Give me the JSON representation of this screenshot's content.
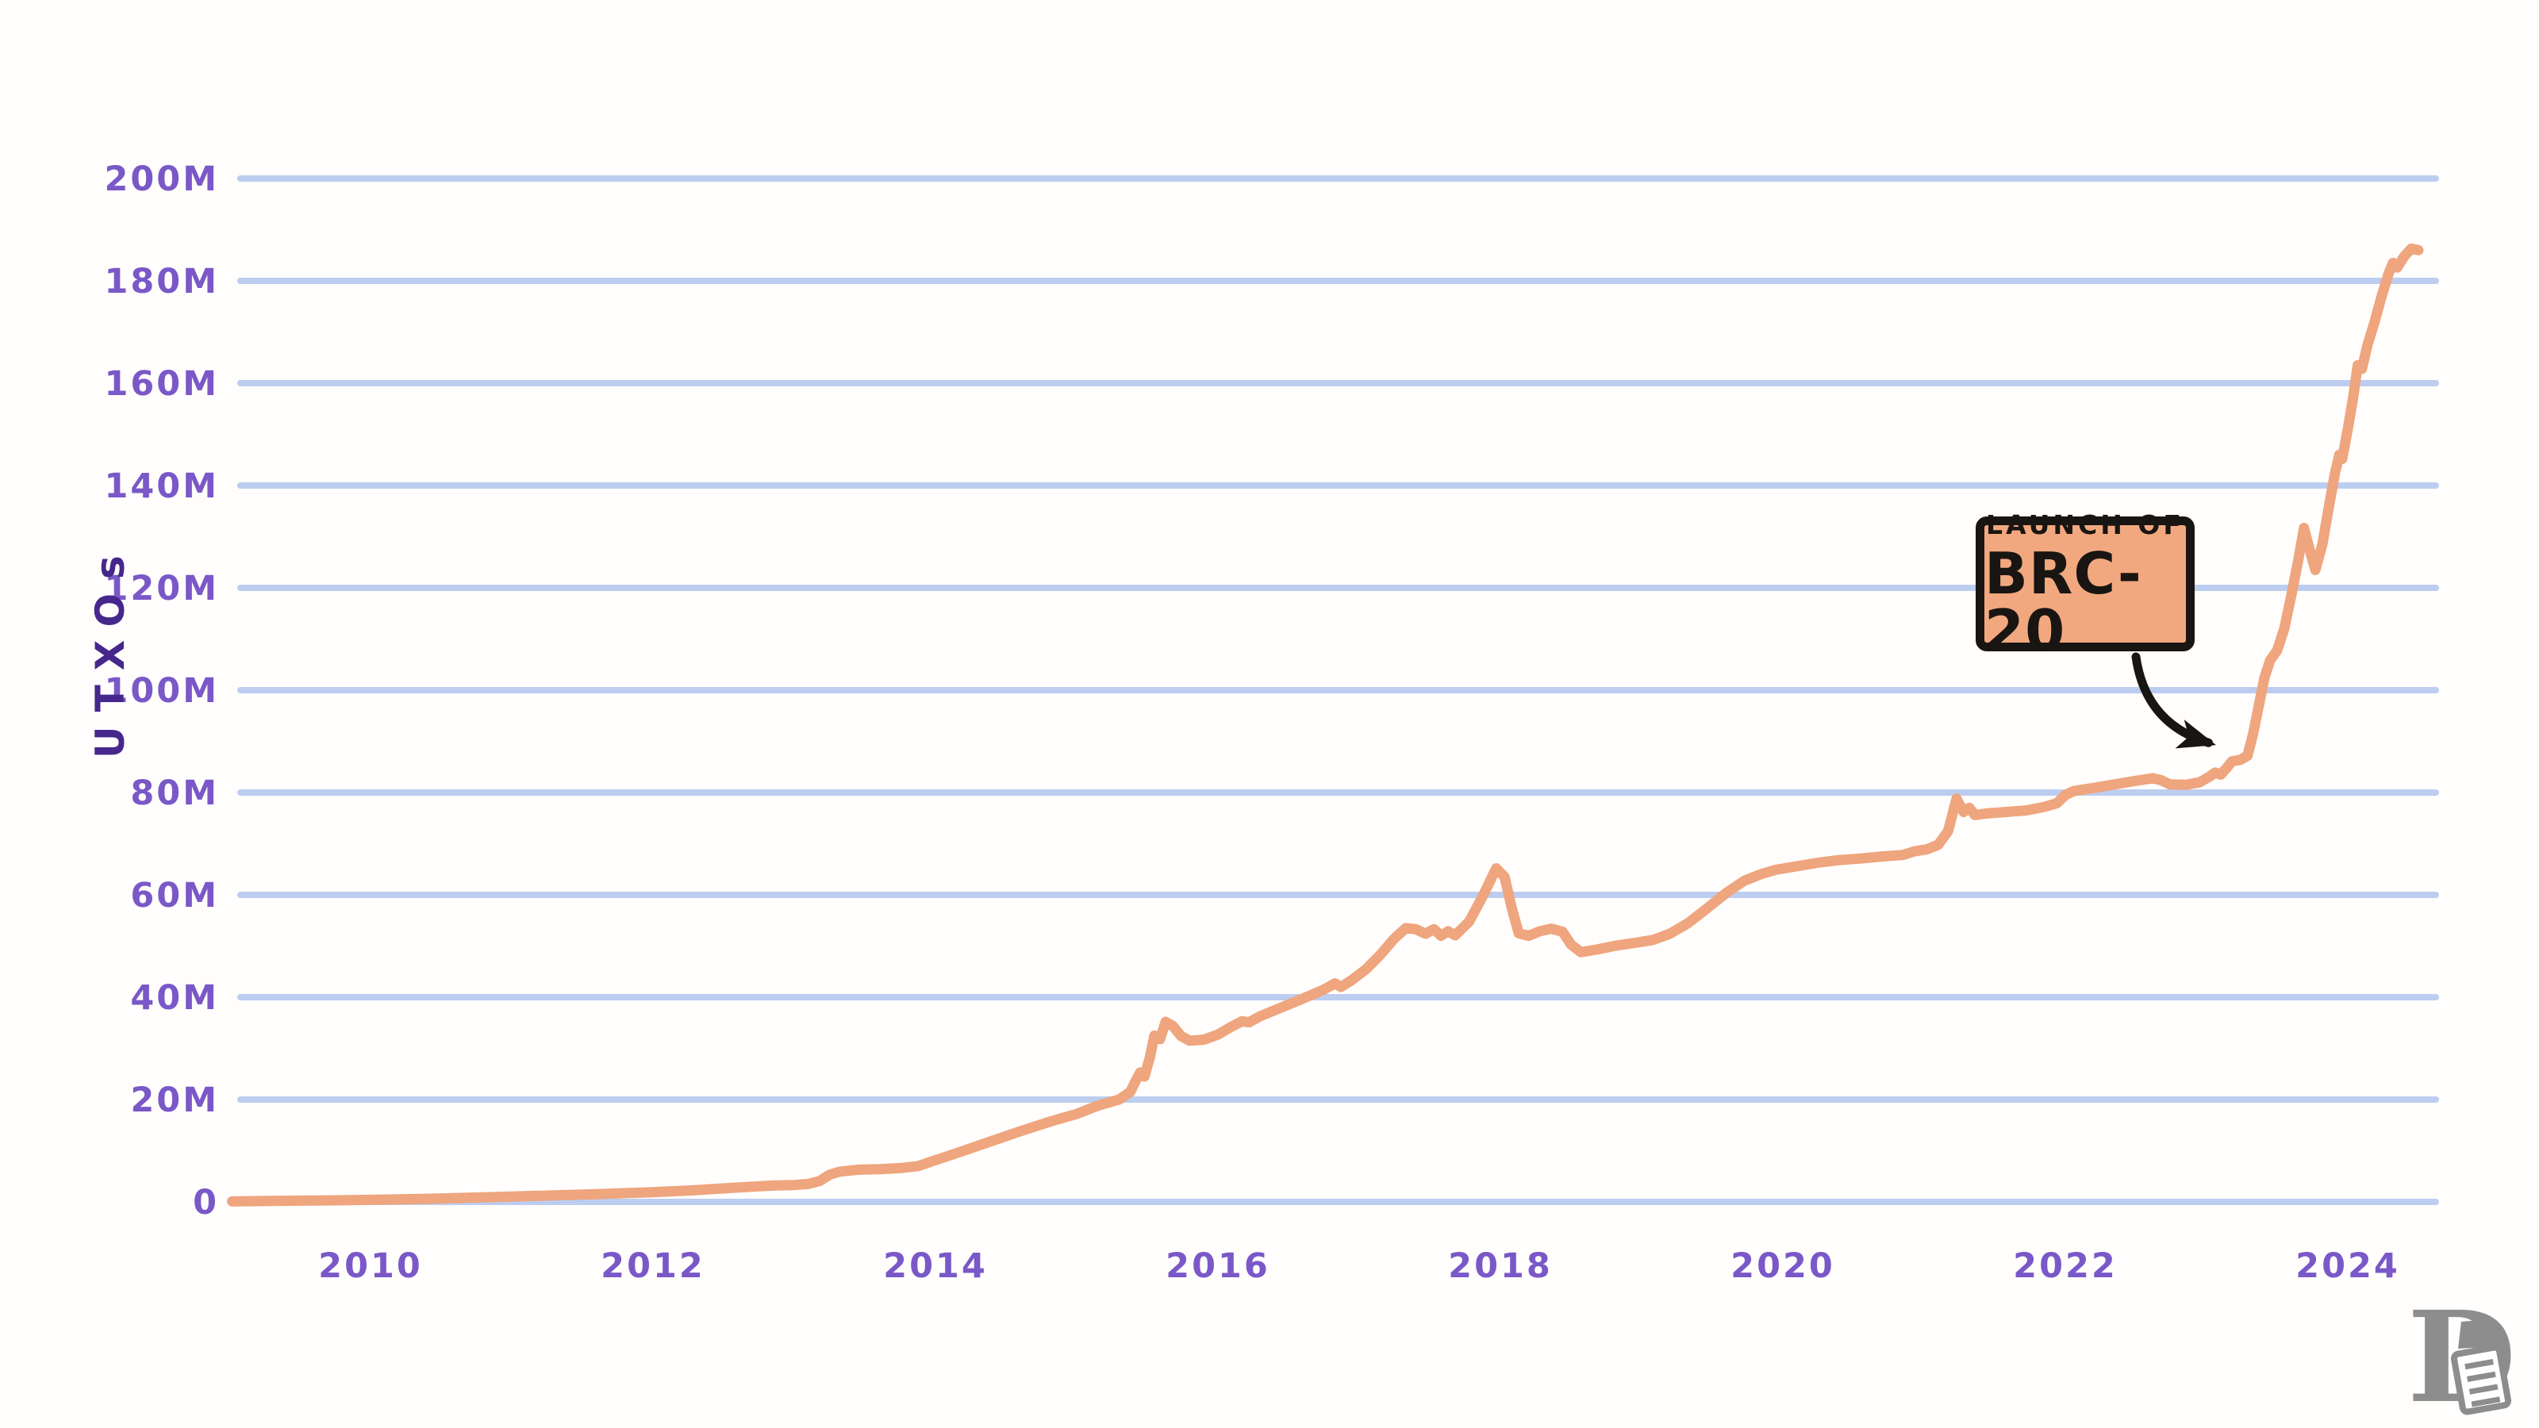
{
  "colors": {
    "background": "#fffefd",
    "line": "#efa57d",
    "grid": "#bccdf0",
    "tick_label": "#7a58c8",
    "axis_title": "#46278c",
    "ink": "#191512",
    "callout_fill": "#f2a87f",
    "logo_gray": "#8d8d8d"
  },
  "logo": {
    "icon": "letter-D-with-scroll"
  },
  "chart_data": {
    "type": "line",
    "title": "",
    "xlabel": "",
    "ylabel": "UTXOs",
    "grid": "horizontal",
    "legend": "none",
    "x_range": [
      2009.0,
      2024.65
    ],
    "y_range": [
      0,
      208
    ],
    "x_ticks": [
      "2010",
      "2012",
      "2014",
      "2016",
      "2018",
      "2020",
      "2022",
      "2024"
    ],
    "x_tick_values": [
      2010,
      2012,
      2014,
      2016,
      2018,
      2020,
      2022,
      2024
    ],
    "y_ticks": [
      "0",
      "20M",
      "40M",
      "60M",
      "80M",
      "100M",
      "120M",
      "140M",
      "160M",
      "180M",
      "200M"
    ],
    "y_tick_values": [
      0,
      20,
      40,
      60,
      80,
      100,
      120,
      140,
      160,
      180,
      200
    ],
    "annotation": {
      "line1": "LAUNCH OF",
      "line2": "BRC-20",
      "arrow_points_to": {
        "year": 2023.07,
        "value": 88.8
      }
    },
    "series": [
      {
        "name": "UTXOs",
        "units": "millions",
        "points": [
          [
            2009.02,
            0.1
          ],
          [
            2009.3,
            0.2
          ],
          [
            2009.7,
            0.3
          ],
          [
            2010.0,
            0.4
          ],
          [
            2010.4,
            0.6
          ],
          [
            2010.8,
            0.9
          ],
          [
            2011.2,
            1.2
          ],
          [
            2011.6,
            1.5
          ],
          [
            2012.0,
            1.9
          ],
          [
            2012.3,
            2.3
          ],
          [
            2012.6,
            2.8
          ],
          [
            2012.85,
            3.2
          ],
          [
            2013.0,
            3.3
          ],
          [
            2013.1,
            3.5
          ],
          [
            2013.18,
            4.1
          ],
          [
            2013.25,
            5.3
          ],
          [
            2013.32,
            5.9
          ],
          [
            2013.45,
            6.3
          ],
          [
            2013.6,
            6.4
          ],
          [
            2013.75,
            6.6
          ],
          [
            2013.88,
            7.0
          ],
          [
            2013.96,
            7.8
          ],
          [
            2014.05,
            8.6
          ],
          [
            2014.2,
            10.0
          ],
          [
            2014.4,
            11.9
          ],
          [
            2014.6,
            13.8
          ],
          [
            2014.8,
            15.6
          ],
          [
            2015.0,
            17.2
          ],
          [
            2015.15,
            18.8
          ],
          [
            2015.3,
            20.0
          ],
          [
            2015.38,
            21.5
          ],
          [
            2015.42,
            23.8
          ],
          [
            2015.45,
            25.3
          ],
          [
            2015.48,
            24.5
          ],
          [
            2015.52,
            28.5
          ],
          [
            2015.55,
            32.5
          ],
          [
            2015.59,
            31.8
          ],
          [
            2015.63,
            35.2
          ],
          [
            2015.68,
            34.4
          ],
          [
            2015.74,
            32.4
          ],
          [
            2015.8,
            31.5
          ],
          [
            2015.9,
            31.7
          ],
          [
            2016.0,
            32.7
          ],
          [
            2016.1,
            34.3
          ],
          [
            2016.17,
            35.3
          ],
          [
            2016.22,
            35.1
          ],
          [
            2016.3,
            36.3
          ],
          [
            2016.45,
            38.0
          ],
          [
            2016.6,
            39.7
          ],
          [
            2016.75,
            41.5
          ],
          [
            2016.83,
            42.7
          ],
          [
            2016.87,
            42.0
          ],
          [
            2016.95,
            43.4
          ],
          [
            2017.05,
            45.5
          ],
          [
            2017.15,
            48.3
          ],
          [
            2017.25,
            51.5
          ],
          [
            2017.33,
            53.5
          ],
          [
            2017.4,
            53.3
          ],
          [
            2017.47,
            52.4
          ],
          [
            2017.53,
            53.3
          ],
          [
            2017.58,
            52.0
          ],
          [
            2017.63,
            52.9
          ],
          [
            2017.68,
            52.1
          ],
          [
            2017.78,
            54.8
          ],
          [
            2017.88,
            60.0
          ],
          [
            2017.97,
            65.2
          ],
          [
            2018.03,
            63.5
          ],
          [
            2018.08,
            57.5
          ],
          [
            2018.13,
            52.5
          ],
          [
            2018.2,
            52.0
          ],
          [
            2018.28,
            52.9
          ],
          [
            2018.36,
            53.4
          ],
          [
            2018.44,
            52.8
          ],
          [
            2018.5,
            50.3
          ],
          [
            2018.57,
            48.8
          ],
          [
            2018.68,
            49.3
          ],
          [
            2018.82,
            50.1
          ],
          [
            2018.95,
            50.6
          ],
          [
            2019.08,
            51.2
          ],
          [
            2019.2,
            52.4
          ],
          [
            2019.33,
            54.5
          ],
          [
            2019.46,
            57.3
          ],
          [
            2019.6,
            60.4
          ],
          [
            2019.73,
            62.8
          ],
          [
            2019.85,
            64.1
          ],
          [
            2019.95,
            64.9
          ],
          [
            2020.1,
            65.6
          ],
          [
            2020.25,
            66.3
          ],
          [
            2020.4,
            66.8
          ],
          [
            2020.55,
            67.1
          ],
          [
            2020.7,
            67.5
          ],
          [
            2020.85,
            67.8
          ],
          [
            2020.93,
            68.5
          ],
          [
            2021.02,
            68.9
          ],
          [
            2021.1,
            69.8
          ],
          [
            2021.17,
            72.5
          ],
          [
            2021.23,
            78.8
          ],
          [
            2021.28,
            76.2
          ],
          [
            2021.32,
            77.0
          ],
          [
            2021.36,
            75.6
          ],
          [
            2021.44,
            75.9
          ],
          [
            2021.58,
            76.2
          ],
          [
            2021.72,
            76.5
          ],
          [
            2021.85,
            77.2
          ],
          [
            2021.94,
            77.9
          ],
          [
            2022.0,
            79.5
          ],
          [
            2022.06,
            80.3
          ],
          [
            2022.2,
            80.9
          ],
          [
            2022.35,
            81.6
          ],
          [
            2022.5,
            82.3
          ],
          [
            2022.62,
            82.8
          ],
          [
            2022.68,
            82.4
          ],
          [
            2022.74,
            81.6
          ],
          [
            2022.85,
            81.5
          ],
          [
            2022.95,
            82.0
          ],
          [
            2023.02,
            83.1
          ],
          [
            2023.06,
            83.9
          ],
          [
            2023.1,
            83.5
          ],
          [
            2023.14,
            84.7
          ],
          [
            2023.18,
            86.1
          ],
          [
            2023.24,
            86.4
          ],
          [
            2023.29,
            87.2
          ],
          [
            2023.33,
            91.5
          ],
          [
            2023.37,
            97.0
          ],
          [
            2023.41,
            102.5
          ],
          [
            2023.45,
            105.8
          ],
          [
            2023.5,
            107.8
          ],
          [
            2023.55,
            112.0
          ],
          [
            2023.6,
            118.5
          ],
          [
            2023.65,
            125.5
          ],
          [
            2023.69,
            131.7
          ],
          [
            2023.73,
            127.5
          ],
          [
            2023.77,
            123.5
          ],
          [
            2023.82,
            128.5
          ],
          [
            2023.87,
            136.5
          ],
          [
            2023.91,
            142.5
          ],
          [
            2023.94,
            146.0
          ],
          [
            2023.96,
            145.2
          ],
          [
            2024.0,
            151.0
          ],
          [
            2024.04,
            157.5
          ],
          [
            2024.07,
            163.5
          ],
          [
            2024.1,
            162.8
          ],
          [
            2024.14,
            167.5
          ],
          [
            2024.19,
            172.0
          ],
          [
            2024.24,
            177.0
          ],
          [
            2024.29,
            181.5
          ],
          [
            2024.32,
            183.5
          ],
          [
            2024.35,
            182.6
          ],
          [
            2024.4,
            184.8
          ],
          [
            2024.45,
            186.3
          ],
          [
            2024.5,
            186.0
          ]
        ]
      }
    ]
  }
}
